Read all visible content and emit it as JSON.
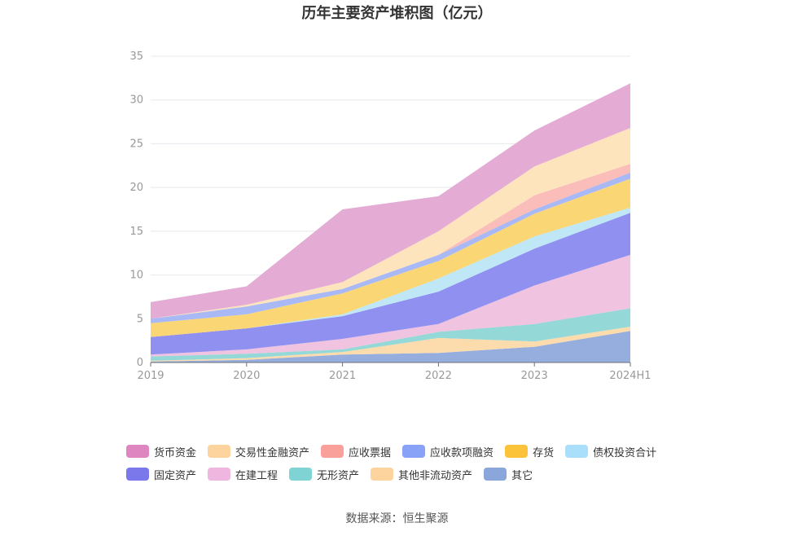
{
  "chart_data": {
    "type": "area",
    "stacked": true,
    "title": "历年主要资产堆积图（亿元）",
    "x": [
      "2019",
      "2020",
      "2021",
      "2022",
      "2023",
      "2024H1"
    ],
    "ylim": [
      0,
      35
    ],
    "yticks": [
      0,
      5,
      10,
      15,
      20,
      25,
      30,
      35
    ],
    "grid": true,
    "legend_position": "bottom",
    "series": [
      {
        "name": "其它",
        "color": "#8faadc",
        "values": [
          0.1,
          0.3,
          0.9,
          1.1,
          1.8,
          3.6
        ]
      },
      {
        "name": "其他非流动资产",
        "color": "#fcd9a8",
        "values": [
          0.1,
          0.2,
          0.3,
          1.7,
          0.6,
          0.5
        ]
      },
      {
        "name": "无形资产",
        "color": "#8fd6d6",
        "values": [
          0.5,
          0.5,
          0.3,
          0.7,
          2.0,
          2.1
        ]
      },
      {
        "name": "在建工程",
        "color": "#efc0de",
        "values": [
          0.2,
          0.5,
          1.2,
          0.9,
          4.4,
          6.1
        ]
      },
      {
        "name": "固定资产",
        "color": "#8a8af0",
        "values": [
          2.0,
          2.4,
          2.6,
          3.7,
          4.2,
          4.8
        ]
      },
      {
        "name": "债权投资合计",
        "color": "#bce6f5",
        "values": [
          0.0,
          0.0,
          0.2,
          1.5,
          1.4,
          0.6
        ]
      },
      {
        "name": "存货",
        "color": "#fbd46e",
        "values": [
          1.6,
          1.6,
          2.4,
          2.0,
          2.6,
          3.3
        ]
      },
      {
        "name": "应收款项融资",
        "color": "#a3b5f5",
        "values": [
          0.5,
          0.9,
          0.5,
          0.7,
          0.5,
          0.7
        ]
      },
      {
        "name": "应收票据",
        "color": "#fbb9b5",
        "values": [
          0.0,
          0.0,
          0.0,
          0.0,
          1.6,
          1.0
        ]
      },
      {
        "name": "交易性金融资产",
        "color": "#fde3b8",
        "values": [
          0.0,
          0.2,
          0.8,
          2.7,
          3.3,
          4.1
        ]
      },
      {
        "name": "货币资金",
        "color": "#e3a8d3",
        "values": [
          1.9,
          2.1,
          8.3,
          4.0,
          4.1,
          5.1
        ]
      }
    ]
  },
  "legend_rows": [
    [
      {
        "label": "货币资金",
        "color": "#dd86c0"
      },
      {
        "label": "交易性金融资产",
        "color": "#fdd49d"
      },
      {
        "label": "应收票据",
        "color": "#f9a09a"
      },
      {
        "label": "应收款项融资",
        "color": "#88a2f7"
      },
      {
        "label": "存货",
        "color": "#fbc33a"
      },
      {
        "label": "债权投资合计",
        "color": "#a9dffa"
      }
    ],
    [
      {
        "label": "固定资产",
        "color": "#7b78ec"
      },
      {
        "label": "在建工程",
        "color": "#efb7df"
      },
      {
        "label": "无形资产",
        "color": "#7fd3d3"
      },
      {
        "label": "其他非流动资产",
        "color": "#fdd49d"
      },
      {
        "label": "其它",
        "color": "#8aa6db"
      }
    ]
  ],
  "source": "数据来源：恒生聚源"
}
